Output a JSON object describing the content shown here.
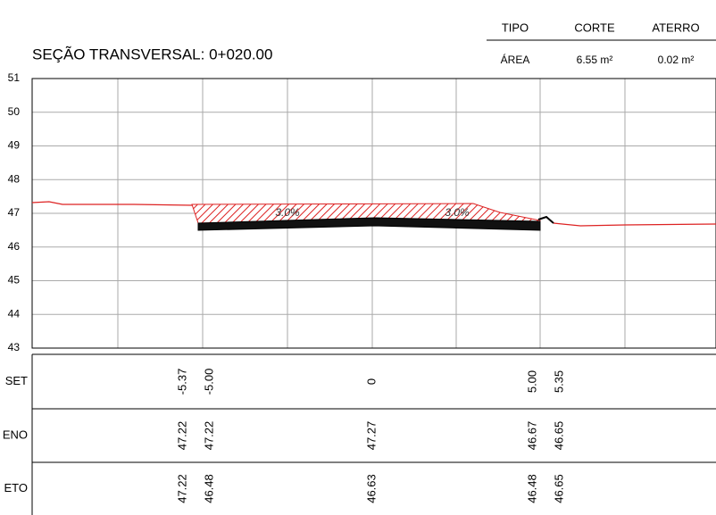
{
  "header": {
    "columns": [
      "TIPO",
      "CORTE",
      "ATERRO"
    ],
    "area": [
      "ÁREA",
      "6.55 m²",
      "0.02 m²"
    ]
  },
  "title": "SEÇÃO TRANSVERSAL: 0+020.00",
  "y_axis": [
    "51",
    "50",
    "49",
    "48",
    "47",
    "46",
    "45",
    "44",
    "43"
  ],
  "slopes": [
    "3.0%",
    "3.0%"
  ],
  "rows": [
    {
      "label": "SET",
      "values": [
        "-5.37",
        "-5.00",
        "0",
        "5.00",
        "5.35"
      ]
    },
    {
      "label": "ENO",
      "values": [
        "47.22",
        "47.22",
        "47.27",
        "46.67",
        "46.65"
      ]
    },
    {
      "label": "ETO",
      "values": [
        "47.22",
        "46.48",
        "46.63",
        "46.48",
        "46.65"
      ]
    }
  ]
}
